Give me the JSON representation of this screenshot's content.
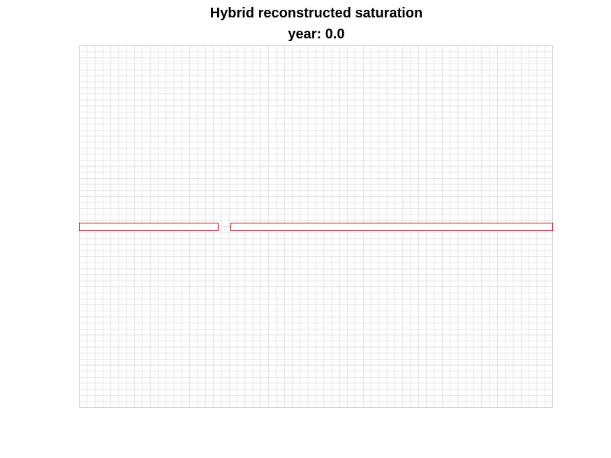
{
  "figure": {
    "title": "Hybrid reconstructed saturation",
    "subtitle": "year: 0.0"
  },
  "grid": {
    "columns": 60,
    "rows": 60,
    "line_color": "#dddddd",
    "background": "#ffffff"
  },
  "fracture": {
    "row_index_from_top": 29,
    "segments": [
      {
        "col_start": 0,
        "col_end": 17.6
      },
      {
        "col_start": 19.2,
        "col_end": 60
      }
    ],
    "outline_color": "#b00000"
  }
}
